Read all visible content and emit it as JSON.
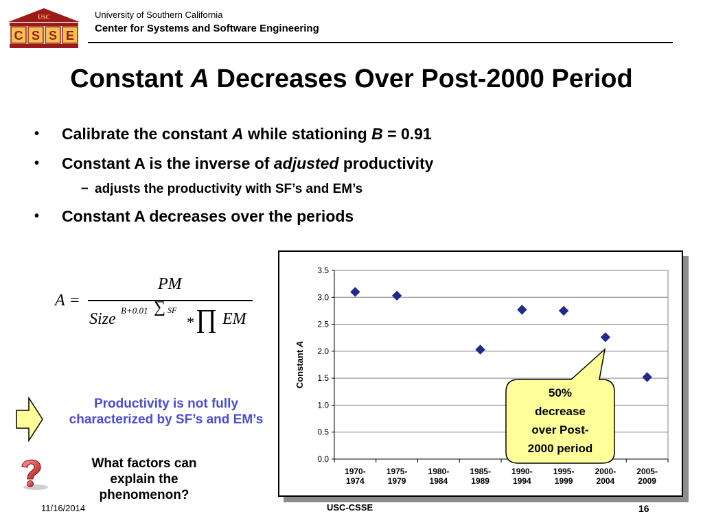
{
  "header": {
    "logo_top_text": "USC",
    "logo_letters": [
      "C",
      "S",
      "S",
      "E"
    ],
    "university": "University of Southern California",
    "center": "Center for Systems and Software Engineering"
  },
  "title": {
    "part1": "Constant ",
    "italic": "A",
    "part2": " Decreases Over Post-2000 Period"
  },
  "bullets": [
    {
      "marker": "•",
      "text_a": "Calibrate the constant ",
      "ital_a": "A",
      "text_b": " while stationing ",
      "ital_b": "B",
      "text_c": " = 0.91"
    },
    {
      "marker": "•",
      "text_a": "Constant A is the inverse of ",
      "ital_a": "adjusted",
      "text_b": " productivity"
    },
    {
      "marker": "–",
      "text_a": "adjusts the productivity with SF’s and EM’s"
    },
    {
      "marker": "•",
      "text_a": "Constant A decreases over the periods"
    }
  ],
  "formula": {
    "lhs": "A",
    "eq": "=",
    "numerator": "PM",
    "size": "Size",
    "exponent": "B+0.01",
    "sum": "∑",
    "sf": "SF",
    "times": "*",
    "prod": "∏",
    "em": "EM"
  },
  "notes": {
    "productivity": "Productivity is not fully characterized by SF’s and EM’s",
    "question": "What factors can explain the phenomenon?"
  },
  "callout": {
    "lines": [
      "50%",
      "decrease",
      "over Post-",
      "2000 period"
    ]
  },
  "chart_data": {
    "type": "scatter",
    "ylabel_text": "Constant ",
    "ylabel_italic": "A",
    "ylim": [
      0,
      3.5
    ],
    "yticks": [
      "0.0",
      "0.5",
      "1.0",
      "1.5",
      "2.0",
      "2.5",
      "3.0",
      "3.5"
    ],
    "categories": [
      [
        "1970-",
        "1974"
      ],
      [
        "1975-",
        "1979"
      ],
      [
        "1980-",
        "1984"
      ],
      [
        "1985-",
        "1989"
      ],
      [
        "1990-",
        "1994"
      ],
      [
        "1995-",
        "1999"
      ],
      [
        "2000-",
        "2004"
      ],
      [
        "2005-",
        "2009"
      ]
    ],
    "values": [
      3.1,
      3.03,
      null,
      2.03,
      2.77,
      2.75,
      2.26,
      1.52
    ],
    "marker_color": "#1f2a8a",
    "grid": true
  },
  "footer": {
    "date": "11/16/2014",
    "org": "USC-CSSE",
    "page": "16"
  }
}
